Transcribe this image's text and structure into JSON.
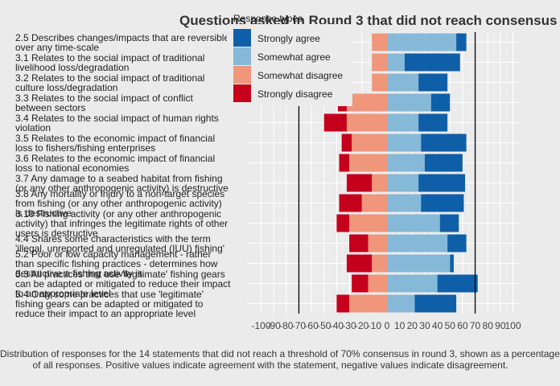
{
  "chart_data": {
    "type": "bar",
    "stacked": true,
    "diverging": true,
    "title": "Questions asked in Round 3 that did not reach consensus",
    "caption_line1": "Distribution of responses for the 14 statements that did not reach a threshold of 70% consensus in round 3, shown as a percentage",
    "caption_line2": "of all responses. Positive values indicate agreement with the statement, negative values indicate disagreement.",
    "legend_title": "Response types",
    "legend_position": "top-right",
    "xlim": [
      -100,
      100
    ],
    "xticks": [
      -100,
      -90,
      -80,
      -70,
      -60,
      -50,
      -40,
      -30,
      -20,
      -10,
      0,
      10,
      20,
      30,
      40,
      50,
      60,
      70,
      80,
      90,
      100
    ],
    "xtick_labels": [
      "-100",
      "-90",
      "-80",
      "-70",
      "-60",
      "-50",
      "-40",
      "-30",
      "-20",
      "-10",
      "0",
      "10",
      "20",
      "30",
      "40",
      "50",
      "60",
      "70",
      "80",
      "90",
      "100"
    ],
    "reference_lines": [
      -70,
      70
    ],
    "grid": true,
    "categories": [
      "2.5 Describes changes/impacts that are reversible over any time-scale",
      "3.1 Relates to the social impact of traditional livelihood loss/degradation",
      "3.2 Relates to the social impact of traditional culture loss/degradation",
      "3.3 Relates to the social impact of conflict between sectors",
      "3.4 Relates to the social impact of human rights violation",
      "3.5 Relates to the economic impact of financial loss to fishers/fishing enterprises",
      "3.6 Relates to the economic impact of financial loss to national economies",
      "3.7 Any damage to a seabed habitat from fishing (or any other anthropogenic activity) is destructive",
      "3.8 Any mortality or injury to a non-target species from fishing (or any other anthropogenic activity) is destructive",
      "3.10 Fishing activity (or any other anthropogenic activity) that infringes the legitimate rights of other users is destructive",
      "4.4 Shares some characteristics with the term 'illegal, unreported and unregulated (IUU) fishing'",
      "5.2 Poor or low capacity management - rather than specific fishing practices - determines how destructive a fishing activity is",
      "5.3 All practices that use 'legitimate' fishing gears can be adapted or mitigated to reduce their impact to an appropriate level",
      "5.4 Only some practices that use 'legitimate' fishing gears can be adapted or mitigated to reduce their impact to an appropriate level"
    ],
    "series": [
      {
        "name": "Strongly agree",
        "color": "#0f5fa8",
        "values": [
          8,
          44,
          23,
          15,
          23,
          36,
          30,
          37,
          34,
          15,
          15,
          3,
          32,
          33
        ]
      },
      {
        "name": "Somewhat agree",
        "color": "#86b8d8",
        "values": [
          55,
          14,
          25,
          35,
          25,
          27,
          30,
          25,
          27,
          42,
          48,
          50,
          40,
          22
        ]
      },
      {
        "name": "Somewhat disagree",
        "color": "#f0967a",
        "values": [
          -12,
          -12,
          -12,
          -32,
          -32,
          -28,
          -30,
          -12,
          -20,
          -30,
          -15,
          -12,
          -15,
          -30
        ]
      },
      {
        "name": "Strongly disagree",
        "color": "#c4001c",
        "values": [
          0,
          0,
          0,
          -7,
          -18,
          -8,
          -8,
          -20,
          -18,
          -10,
          -15,
          -20,
          -13,
          -10
        ]
      }
    ]
  }
}
